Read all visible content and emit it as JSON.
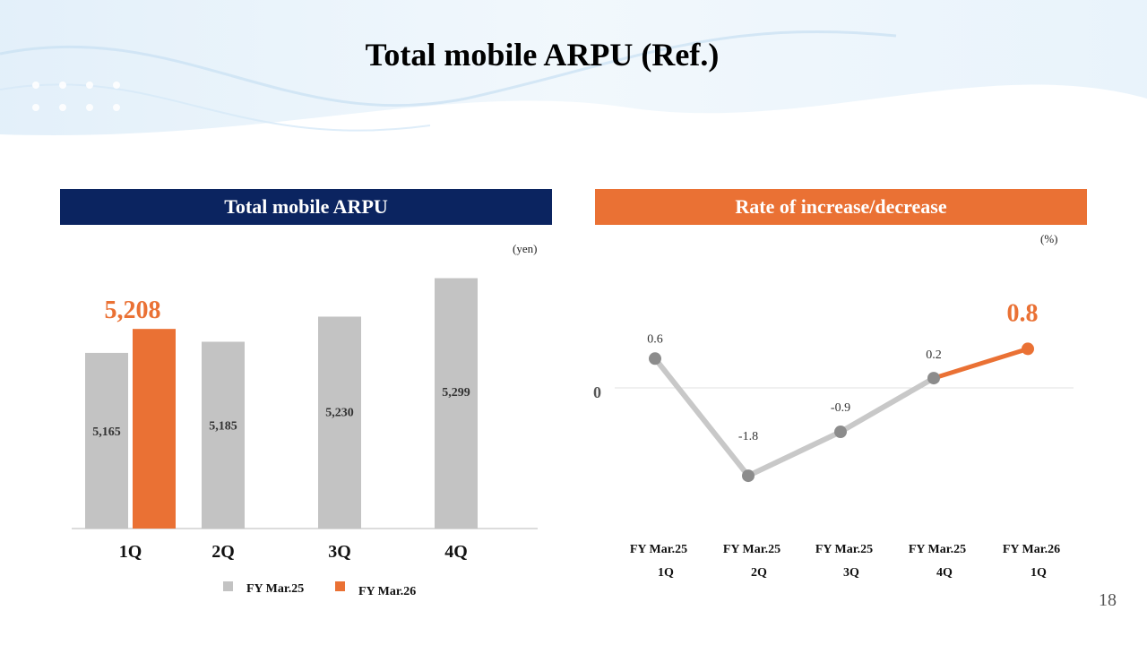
{
  "title": "Total mobile ARPU (Ref.)",
  "page_number": "18",
  "colors": {
    "navy": "#0b2460",
    "orange": "#ea7134",
    "gray": "#c3c3c3"
  },
  "chart_data": [
    {
      "type": "bar",
      "title": "Total mobile ARPU",
      "unit": "(yen)",
      "categories": [
        "1Q",
        "2Q",
        "3Q",
        "4Q"
      ],
      "series": [
        {
          "name": "FY Mar.25",
          "color": "#c3c3c3",
          "values": [
            5165,
            5185,
            5230,
            5299
          ],
          "labels": [
            "5,165",
            "5,185",
            "5,230",
            "5,299"
          ]
        },
        {
          "name": "FY Mar.26",
          "color": "#ea7134",
          "values": [
            5208,
            null,
            null,
            null
          ],
          "labels": [
            "5,208",
            "",
            "",
            ""
          ]
        }
      ],
      "ylim": [
        4850,
        5340
      ],
      "legend": "bottom"
    },
    {
      "type": "line",
      "title": "Rate of increase/decrease",
      "unit": "(%)",
      "categories": [
        {
          "line1": "FY Mar.25",
          "line2": "1Q"
        },
        {
          "line1": "FY Mar.25",
          "line2": "2Q"
        },
        {
          "line1": "FY Mar.25",
          "line2": "3Q"
        },
        {
          "line1": "FY Mar.25",
          "line2": "4Q"
        },
        {
          "line1": "FY Mar.26",
          "line2": "1Q"
        }
      ],
      "values": [
        0.6,
        -1.8,
        -0.9,
        0.2,
        0.8
      ],
      "labels": [
        "0.6",
        "-1.8",
        "-0.9",
        "0.2",
        "0.8"
      ],
      "zero_label": "0",
      "ylim": [
        -2.5,
        1.6
      ],
      "highlight_from_index": 3
    }
  ]
}
